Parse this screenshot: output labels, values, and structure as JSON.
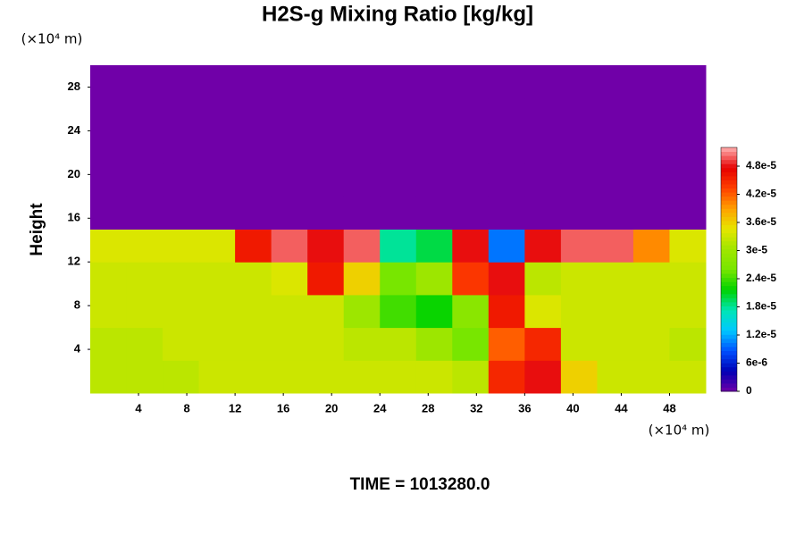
{
  "chart_data": {
    "type": "heatmap",
    "title": "H2S-g Mixing Ratio [kg/kg]",
    "y_label": "Height",
    "x_unit": "(×10⁴ m)",
    "y_unit": "(×10⁴ m)",
    "footer": "TIME = 1013280.0",
    "x": [
      1.5,
      4.5,
      7.5,
      10.5,
      13.5,
      16.5,
      19.5,
      22.5,
      25.5,
      28.5,
      31.5,
      34.5,
      37.5,
      40.5,
      43.5,
      46.5,
      49.5
    ],
    "y": [
      1.5,
      4.5,
      7.5,
      10.5,
      13.5,
      16.5,
      19.5,
      22.5,
      25.5,
      28.5
    ],
    "z": [
      [
        3.2e-05,
        3.2e-05,
        3.2e-05,
        3.3e-05,
        3.3e-05,
        3.3e-05,
        3.3e-05,
        3.3e-05,
        3.3e-05,
        3.3e-05,
        3.2e-05,
        4.5e-05,
        4.8e-05,
        3.6e-05,
        3.3e-05,
        3.3e-05,
        3.3e-05
      ],
      [
        3.2e-05,
        3.2e-05,
        3.3e-05,
        3.3e-05,
        3.3e-05,
        3.3e-05,
        3.3e-05,
        3.2e-05,
        3.2e-05,
        3e-05,
        2.6e-05,
        4.2e-05,
        4.5e-05,
        3.3e-05,
        3.3e-05,
        3.3e-05,
        3.2e-05
      ],
      [
        3.3e-05,
        3.3e-05,
        3.3e-05,
        3.3e-05,
        3.3e-05,
        3.3e-05,
        3.3e-05,
        3e-05,
        2.4e-05,
        2.2e-05,
        2.8e-05,
        4.6e-05,
        3.4e-05,
        3.3e-05,
        3.3e-05,
        3.3e-05,
        3.3e-05
      ],
      [
        3.3e-05,
        3.3e-05,
        3.3e-05,
        3.3e-05,
        3.3e-05,
        3.4e-05,
        4.6e-05,
        3.6e-05,
        2.6e-05,
        3e-05,
        4.4e-05,
        4.8e-05,
        3.2e-05,
        3.3e-05,
        3.3e-05,
        3.3e-05,
        3.3e-05
      ],
      [
        3.4e-05,
        3.4e-05,
        3.4e-05,
        3.4e-05,
        4.6e-05,
        5e-05,
        4.8e-05,
        5e-05,
        1.8e-05,
        2e-05,
        4.8e-05,
        1e-05,
        4.8e-05,
        5e-05,
        5e-05,
        4e-05,
        3.4e-05
      ],
      [
        0,
        0,
        0,
        0,
        0,
        0,
        0,
        0,
        0,
        0,
        0,
        0,
        0,
        0,
        0,
        0,
        0
      ],
      [
        0,
        0,
        0,
        0,
        0,
        0,
        0,
        0,
        0,
        0,
        0,
        0,
        0,
        0,
        0,
        0,
        0
      ],
      [
        0,
        0,
        0,
        0,
        0,
        0,
        0,
        0,
        0,
        0,
        0,
        0,
        0,
        0,
        0,
        0,
        0
      ],
      [
        0,
        0,
        0,
        0,
        0,
        0,
        0,
        0,
        0,
        0,
        0,
        0,
        0,
        0,
        0,
        0,
        0
      ],
      [
        0,
        0,
        0,
        0,
        0,
        0,
        0,
        0,
        0,
        0,
        0,
        0,
        0,
        0,
        0,
        0,
        0
      ]
    ],
    "xlim": [
      0,
      51
    ],
    "ylim": [
      0,
      30
    ],
    "xticks": [
      4,
      8,
      12,
      16,
      20,
      24,
      28,
      32,
      36,
      40,
      44,
      48
    ],
    "yticks": [
      4,
      8,
      12,
      16,
      20,
      24,
      28
    ],
    "zlim": [
      0,
      5.2e-05
    ],
    "zticks": [
      0,
      {
        "value": 6e-06,
        "label": "6e-6"
      },
      {
        "value": 1.2e-05,
        "label": "1.2e-5"
      },
      {
        "value": 1.8e-05,
        "label": "1.8e-5"
      },
      {
        "value": 2.4e-05,
        "label": "2.4e-5"
      },
      {
        "value": 3e-05,
        "label": "3e-5"
      },
      {
        "value": 3.6e-05,
        "label": "3.6e-5"
      },
      {
        "value": 4.2e-05,
        "label": "4.2e-5"
      },
      {
        "value": 4.8e-05,
        "label": "4.8e-5"
      }
    ],
    "colors": [
      "#7000a8",
      "#0000b4",
      "#0050ff",
      "#00c8ff",
      "#00e6b4",
      "#00d200",
      "#78e600",
      "#a0e600",
      "#e6e600",
      "#ffa000",
      "#ff4000",
      "#e60000",
      "#ffb0b0"
    ]
  }
}
